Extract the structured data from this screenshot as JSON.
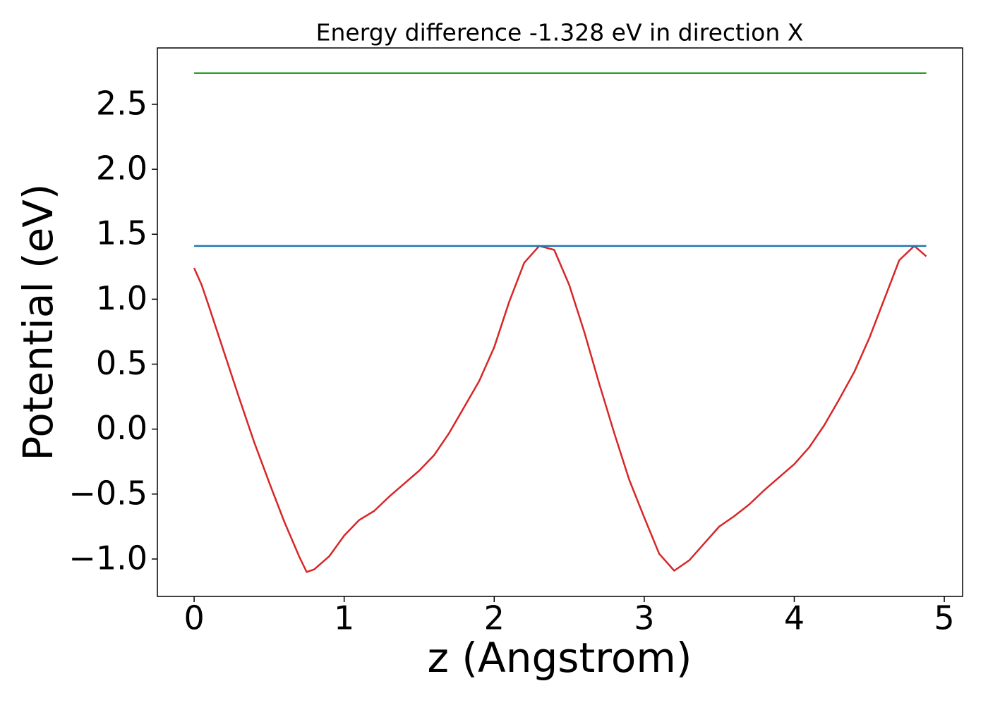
{
  "chart_data": {
    "type": "line",
    "title": "Energy difference -1.328 eV in direction X",
    "x_label": "z (Angstrom)",
    "y_label": "Potential (eV)",
    "xlim": [
      -0.245,
      5.122
    ],
    "ylim": [
      -1.288,
      2.934
    ],
    "xticks": [
      0,
      1,
      2,
      3,
      4,
      5
    ],
    "yticks": [
      {
        "value": -1.0,
        "label": "−1.0"
      },
      {
        "value": -0.5,
        "label": "−0.5"
      },
      {
        "value": 0.0,
        "label": "0.0"
      },
      0.5,
      {
        "value": 1.0,
        "label": "1.0"
      },
      1.5,
      {
        "value": 2.0,
        "label": "2.0"
      },
      2.5
    ],
    "grid": false,
    "series": [
      {
        "color": "#d62728",
        "x": [
          0,
          0.05,
          0.1,
          0.2,
          0.3,
          0.4,
          0.5,
          0.6,
          0.7,
          0.75,
          0.8,
          0.9,
          1.0,
          1.1,
          1.2,
          1.3,
          1.4,
          1.5,
          1.6,
          1.7,
          1.8,
          1.9,
          2.0,
          2.1,
          2.2,
          2.3,
          2.4,
          2.5,
          2.6,
          2.7,
          2.8,
          2.9,
          3.0,
          3.1,
          3.2,
          3.3,
          3.4,
          3.5,
          3.6,
          3.7,
          3.8,
          3.9,
          4.0,
          4.1,
          4.2,
          4.3,
          4.4,
          4.5,
          4.6,
          4.7,
          4.8,
          4.88
        ],
        "values": [
          1.24,
          1.11,
          0.94,
          0.59,
          0.24,
          -0.1,
          -0.41,
          -0.71,
          -0.98,
          -1.1,
          -1.08,
          -0.98,
          -0.82,
          -0.7,
          -0.63,
          -0.52,
          -0.42,
          -0.32,
          -0.2,
          -0.03,
          0.17,
          0.37,
          0.63,
          0.98,
          1.28,
          1.41,
          1.38,
          1.11,
          0.75,
          0.35,
          -0.03,
          -0.39,
          -0.68,
          -0.96,
          -1.09,
          -1.01,
          -0.88,
          -0.75,
          -0.67,
          -0.58,
          -0.47,
          -0.37,
          -0.27,
          -0.14,
          0.03,
          0.23,
          0.44,
          0.7,
          1.0,
          1.3,
          1.41,
          1.33
        ]
      },
      {
        "color": "#1f77b4",
        "x": [
          0,
          4.88
        ],
        "values": [
          1.41,
          1.41
        ]
      },
      {
        "color": "#2ca02c",
        "x": [
          0,
          4.88
        ],
        "values": [
          2.74,
          2.74
        ]
      }
    ]
  }
}
